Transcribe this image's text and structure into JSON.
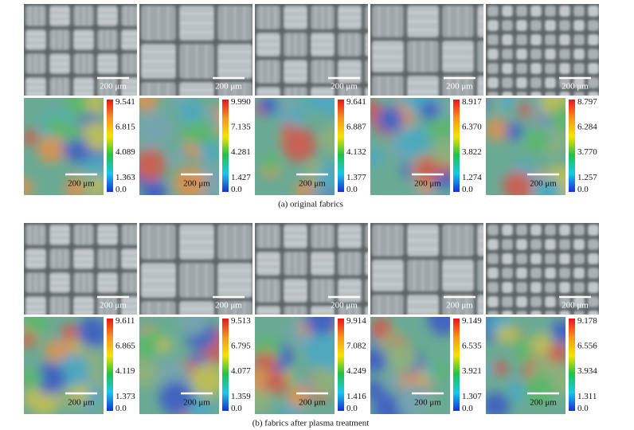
{
  "groups": [
    {
      "caption": "(a) original fabrics",
      "panels": [
        {
          "photo_scale": "200 μm",
          "heatmap_scale": "200 μm",
          "colorbar": [
            "9.541",
            "6.815",
            "4.089",
            "1.363",
            "0.0"
          ]
        },
        {
          "photo_scale": "200 μm",
          "heatmap_scale": "200 μm",
          "colorbar": [
            "9.990",
            "7.135",
            "4.281",
            "1.427",
            "0.0"
          ]
        },
        {
          "photo_scale": "200 μm",
          "heatmap_scale": "200 μm",
          "colorbar": [
            "9.641",
            "6.887",
            "4.132",
            "1.377",
            "0.0"
          ]
        },
        {
          "photo_scale": "200 μm",
          "heatmap_scale": "200 μm",
          "colorbar": [
            "8.917",
            "6.370",
            "3.822",
            "1.274",
            "0.0"
          ]
        },
        {
          "photo_scale": "200 μm",
          "heatmap_scale": "200 μm",
          "colorbar": [
            "8.797",
            "6.284",
            "3.770",
            "1.257",
            "0.0"
          ]
        }
      ]
    },
    {
      "caption": "(b) fabrics after plasma treatment",
      "panels": [
        {
          "photo_scale": "200 μm",
          "heatmap_scale": "200 μm",
          "colorbar": [
            "9.611",
            "6.865",
            "4.119",
            "1.373",
            "0.0"
          ]
        },
        {
          "photo_scale": "200 μm",
          "heatmap_scale": "200 μm",
          "colorbar": [
            "9.513",
            "6.795",
            "4.077",
            "1.359",
            "0.0"
          ]
        },
        {
          "photo_scale": "200 μm",
          "heatmap_scale": "200 μm",
          "colorbar": [
            "9.914",
            "7.082",
            "4.249",
            "1.416",
            "0.0"
          ]
        },
        {
          "photo_scale": "200 μm",
          "heatmap_scale": "200 μm",
          "colorbar": [
            "9.149",
            "6.535",
            "3.921",
            "1.307",
            "0.0"
          ]
        },
        {
          "photo_scale": "200 μm",
          "heatmap_scale": "200 μm",
          "colorbar": [
            "9.178",
            "6.556",
            "3.934",
            "1.311",
            "0.0"
          ]
        }
      ]
    }
  ]
}
